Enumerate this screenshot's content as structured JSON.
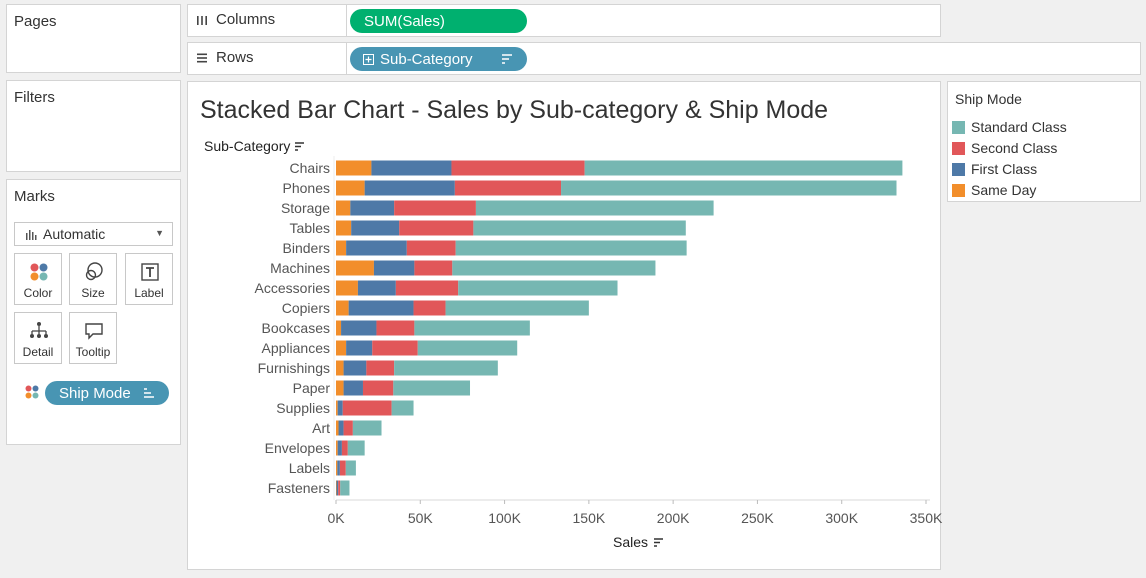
{
  "pages": {
    "title": "Pages"
  },
  "filters": {
    "title": "Filters"
  },
  "columns_shelf": {
    "label": "Columns",
    "pill": "SUM(Sales)"
  },
  "rows_shelf": {
    "label": "Rows",
    "pill": "Sub-Category"
  },
  "marks": {
    "title": "Marks",
    "type": "Automatic",
    "cards": {
      "color": "Color",
      "size": "Size",
      "label": "Label",
      "detail": "Detail",
      "tooltip": "Tooltip"
    },
    "color_pill": "Ship Mode"
  },
  "legend": {
    "title": "Ship Mode",
    "items": [
      {
        "name": "Standard Class",
        "color": "#76b7b2"
      },
      {
        "name": "Second Class",
        "color": "#e15759"
      },
      {
        "name": "First Class",
        "color": "#4e79a7"
      },
      {
        "name": "Same Day",
        "color": "#f28e2b"
      }
    ]
  },
  "chart_data": {
    "type": "bar",
    "orientation": "horizontal",
    "stacked": true,
    "title": "Stacked Bar Chart -  Sales by Sub-category & Ship Mode",
    "row_header": "Sub-Category",
    "xlabel": "Sales",
    "xlim": [
      0,
      350000
    ],
    "xticks": [
      0,
      50000,
      100000,
      150000,
      200000,
      250000,
      300000,
      350000
    ],
    "xtick_labels": [
      "0K",
      "50K",
      "100K",
      "150K",
      "200K",
      "250K",
      "300K",
      "350K"
    ],
    "categories": [
      "Chairs",
      "Phones",
      "Storage",
      "Tables",
      "Binders",
      "Machines",
      "Accessories",
      "Copiers",
      "Bookcases",
      "Appliances",
      "Furnishings",
      "Paper",
      "Supplies",
      "Art",
      "Envelopes",
      "Labels",
      "Fasteners"
    ],
    "series": [
      {
        "name": "Same Day",
        "color": "#f28e2b",
        "values": [
          21000,
          17000,
          8500,
          9000,
          6000,
          22500,
          13000,
          7500,
          3000,
          6000,
          4500,
          4500,
          1000,
          1500,
          1000,
          800,
          300
        ]
      },
      {
        "name": "First Class",
        "color": "#4e79a7",
        "values": [
          47500,
          53500,
          26000,
          28500,
          36000,
          24000,
          22500,
          38500,
          21000,
          15500,
          13500,
          11500,
          3000,
          3000,
          2500,
          1500,
          1000
        ]
      },
      {
        "name": "Second Class",
        "color": "#e15759",
        "values": [
          79000,
          63000,
          48500,
          44000,
          29000,
          22500,
          37000,
          19000,
          22500,
          27000,
          16500,
          18000,
          29000,
          5500,
          3500,
          3500,
          1200
        ]
      },
      {
        "name": "Standard Class",
        "color": "#76b7b2",
        "values": [
          188500,
          199000,
          141000,
          126000,
          137000,
          120500,
          94500,
          85000,
          68500,
          59000,
          61500,
          45500,
          13000,
          17000,
          10000,
          6000,
          5500
        ]
      }
    ]
  }
}
